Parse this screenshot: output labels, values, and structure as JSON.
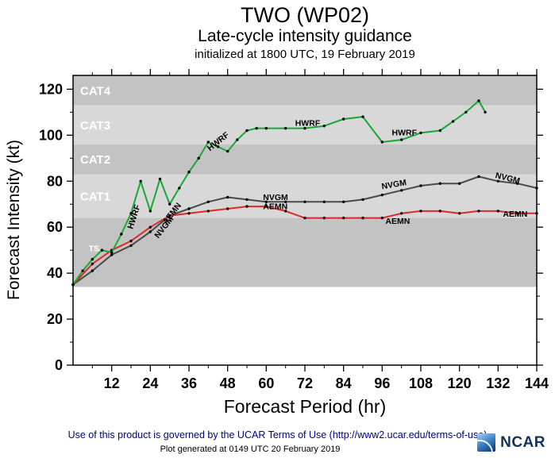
{
  "header": {
    "title": "TWO (WP02)",
    "subtitle": "Late-cycle intensity guidance",
    "init_line": "initialized at 1800 UTC, 19 February 2019"
  },
  "chart_data": {
    "type": "line",
    "title": "TWO (WP02) Late-cycle intensity guidance",
    "xlabel": "Forecast Period (hr)",
    "ylabel": "Forecast Intensity (kt)",
    "xlim": [
      0,
      144
    ],
    "ylim": [
      0,
      126
    ],
    "xticks": [
      12,
      24,
      36,
      48,
      60,
      72,
      84,
      96,
      108,
      120,
      132,
      144
    ],
    "x_minor_step": 6,
    "yticks": [
      0,
      20,
      40,
      60,
      80,
      100,
      120
    ],
    "y_minor_step": 10,
    "grid": false,
    "band_label_color": "#ffffff",
    "marker_color": "#000000",
    "bands": [
      {
        "label": "",
        "from": 34,
        "to": 64,
        "color": "#c3c3c3"
      },
      {
        "label": "CAT1",
        "from": 64,
        "to": 83,
        "color": "#d8d8d8"
      },
      {
        "label": "CAT2",
        "from": 83,
        "to": 96,
        "color": "#c3c3c3"
      },
      {
        "label": "CAT3",
        "from": 96,
        "to": 113,
        "color": "#d8d8d8"
      },
      {
        "label": "CAT4",
        "from": 113,
        "to": 126,
        "color": "#c3c3c3"
      }
    ],
    "series": [
      {
        "name": "NVGM",
        "color": "#4a4a4a",
        "points": [
          [
            0,
            35
          ],
          [
            6,
            41
          ],
          [
            12,
            48
          ],
          [
            18,
            52
          ],
          [
            24,
            58
          ],
          [
            30,
            65
          ],
          [
            36,
            68
          ],
          [
            42,
            71
          ],
          [
            48,
            73
          ],
          [
            54,
            72
          ],
          [
            60,
            71
          ],
          [
            66,
            71
          ],
          [
            72,
            71
          ],
          [
            78,
            71
          ],
          [
            84,
            71
          ],
          [
            90,
            72
          ],
          [
            96,
            74
          ],
          [
            102,
            76
          ],
          [
            108,
            78
          ],
          [
            114,
            79
          ],
          [
            120,
            79
          ],
          [
            126,
            82
          ],
          [
            132,
            80
          ],
          [
            138,
            79
          ],
          [
            144,
            77
          ]
        ]
      },
      {
        "name": "AEMN",
        "color": "#e02828",
        "points": [
          [
            0,
            35
          ],
          [
            6,
            44
          ],
          [
            12,
            50
          ],
          [
            18,
            54
          ],
          [
            24,
            60
          ],
          [
            30,
            65
          ],
          [
            36,
            66
          ],
          [
            42,
            67
          ],
          [
            48,
            68
          ],
          [
            54,
            69
          ],
          [
            60,
            69
          ],
          [
            66,
            67
          ],
          [
            72,
            64
          ],
          [
            78,
            64
          ],
          [
            84,
            64
          ],
          [
            90,
            64
          ],
          [
            96,
            64
          ],
          [
            102,
            66
          ],
          [
            108,
            67
          ],
          [
            114,
            67
          ],
          [
            120,
            66
          ],
          [
            126,
            67
          ],
          [
            132,
            67
          ],
          [
            138,
            66
          ],
          [
            144,
            66
          ]
        ]
      },
      {
        "name": "HWRF",
        "color": "#17a838",
        "points": [
          [
            0,
            35
          ],
          [
            3,
            41
          ],
          [
            6,
            46
          ],
          [
            9,
            50
          ],
          [
            12,
            49
          ],
          [
            15,
            57
          ],
          [
            18,
            66
          ],
          [
            21,
            80
          ],
          [
            24,
            67
          ],
          [
            27,
            81
          ],
          [
            30,
            70
          ],
          [
            33,
            77
          ],
          [
            36,
            84
          ],
          [
            39,
            90
          ],
          [
            42,
            97
          ],
          [
            45,
            95
          ],
          [
            48,
            93
          ],
          [
            51,
            98
          ],
          [
            54,
            102
          ],
          [
            57,
            103
          ],
          [
            60,
            103
          ],
          [
            66,
            103
          ],
          [
            72,
            103
          ],
          [
            78,
            104
          ],
          [
            84,
            107
          ],
          [
            90,
            108
          ],
          [
            96,
            97
          ],
          [
            102,
            98
          ],
          [
            108,
            101
          ],
          [
            114,
            102
          ],
          [
            118,
            106
          ],
          [
            122,
            110
          ],
          [
            126,
            115
          ],
          [
            128,
            110
          ]
        ]
      }
    ],
    "annotations": [
      {
        "text": "HWRF",
        "x": 18.5,
        "y": 59,
        "rot": -72
      },
      {
        "text": "NVGM",
        "x": 26.5,
        "y": 55,
        "rot": -52
      },
      {
        "text": "AEMN",
        "x": 29,
        "y": 61,
        "rot": -52
      },
      {
        "text": "HWRF",
        "x": 42.5,
        "y": 93,
        "rot": -38
      },
      {
        "text": "NVGM",
        "x": 59,
        "y": 71.8,
        "rot": 0
      },
      {
        "text": "AEMN",
        "x": 59,
        "y": 67.8,
        "rot": 0
      },
      {
        "text": "HWRF",
        "x": 69,
        "y": 104,
        "rot": 0
      },
      {
        "text": "HWRF",
        "x": 99,
        "y": 100,
        "rot": 0
      },
      {
        "text": "NVGM",
        "x": 96,
        "y": 76.5,
        "rot": -10
      },
      {
        "text": "AEMN",
        "x": 97,
        "y": 61.5,
        "rot": 0
      },
      {
        "text": "NVGM",
        "x": 131,
        "y": 81.5,
        "rot": 14
      },
      {
        "text": "AEMN",
        "x": 133.5,
        "y": 64.5,
        "rot": 0
      }
    ],
    "ts_marker": {
      "text": "TS",
      "x": 6.5,
      "y": 49.5,
      "color": "#ffffff"
    }
  },
  "footer": {
    "terms": "Use of this product is governed by the UCAR Terms of Use (http://www2.ucar.edu/terms-of-use)",
    "generated": "Plot generated at 0149 UTC   20 February 2019",
    "logo_text": "NCAR"
  }
}
